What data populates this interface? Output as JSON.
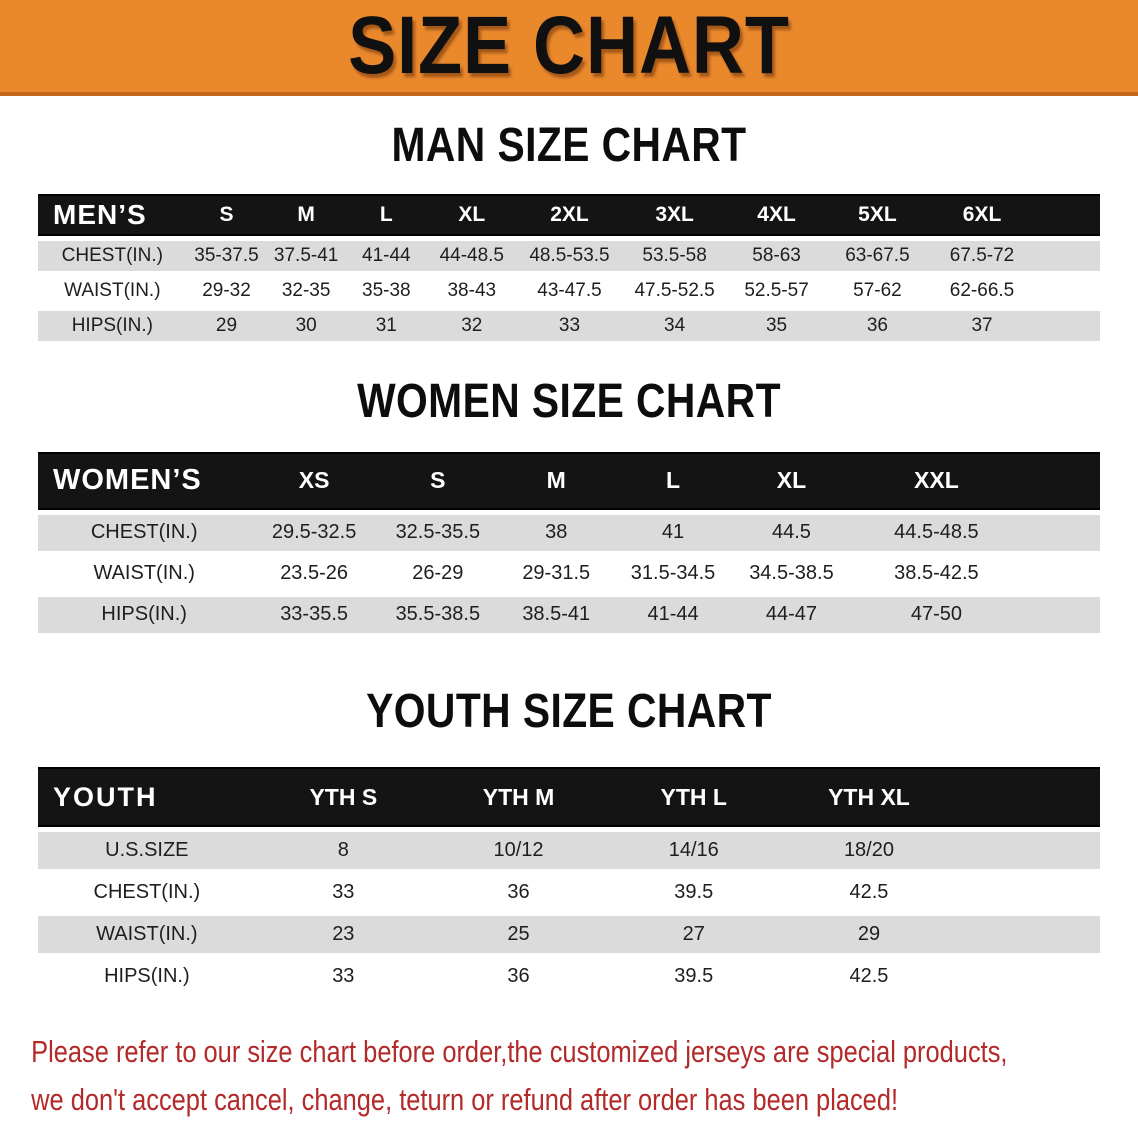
{
  "banner": {
    "title": "SIZE CHART"
  },
  "men": {
    "heading": "MAN SIZE CHART",
    "table": {
      "header": [
        "MEN’S",
        "S",
        "M",
        "L",
        "XL",
        "2XL",
        "3XL",
        "4XL",
        "5XL",
        "6XL"
      ],
      "rows": [
        {
          "label": "CHEST(IN.)",
          "values": [
            "35-37.5",
            "37.5-41",
            "41-44",
            "44-48.5",
            "48.5-53.5",
            "53.5-58",
            "58-63",
            "63-67.5",
            "67.5-72"
          ]
        },
        {
          "label": "WAIST(IN.)",
          "values": [
            "29-32",
            "32-35",
            "35-38",
            "38-43",
            "43-47.5",
            "47.5-52.5",
            "52.5-57",
            "57-62",
            "62-66.5"
          ]
        },
        {
          "label": "HIPS(IN.)",
          "values": [
            "29",
            "30",
            "31",
            "32",
            "33",
            "34",
            "35",
            "36",
            "37"
          ]
        }
      ]
    }
  },
  "women": {
    "heading": "WOMEN SIZE CHART",
    "table": {
      "header": [
        "WOMEN’S",
        "XS",
        "S",
        "M",
        "L",
        "XL",
        "XXL"
      ],
      "rows": [
        {
          "label": "CHEST(IN.)",
          "values": [
            "29.5-32.5",
            "32.5-35.5",
            "38",
            "41",
            "44.5",
            "44.5-48.5"
          ]
        },
        {
          "label": "WAIST(IN.)",
          "values": [
            "23.5-26",
            "26-29",
            "29-31.5",
            "31.5-34.5",
            "34.5-38.5",
            "38.5-42.5"
          ]
        },
        {
          "label": "HIPS(IN.)",
          "values": [
            "33-35.5",
            "35.5-38.5",
            "38.5-41",
            "41-44",
            "44-47",
            "47-50"
          ]
        }
      ]
    }
  },
  "youth": {
    "heading": "YOUTH SIZE CHART",
    "table": {
      "header": [
        "YOUTH",
        "YTH S",
        "YTH M",
        "YTH L",
        "YTH XL"
      ],
      "rows": [
        {
          "label": "U.S.SIZE",
          "values": [
            "8",
            "10/12",
            "14/16",
            "18/20"
          ]
        },
        {
          "label": "CHEST(IN.)",
          "values": [
            "33",
            "36",
            "39.5",
            "42.5"
          ]
        },
        {
          "label": "WAIST(IN.)",
          "values": [
            "23",
            "25",
            "27",
            "29"
          ]
        },
        {
          "label": "HIPS(IN.)",
          "values": [
            "33",
            "36",
            "39.5",
            "42.5"
          ]
        }
      ]
    }
  },
  "disclaimer": {
    "line1": "Please refer to our size chart before order,the customized jerseys are special products,",
    "line2": "we don't accept cancel, change, teturn or refund after order has been placed!"
  },
  "colors": {
    "banner_bg": "#EA882C",
    "banner_edge": "#C2661A",
    "header_bar": "#141414",
    "row_shade": "#DBDBDB",
    "text_dark": "#1E1E1E",
    "disclaimer_red": "#B22A2A"
  }
}
